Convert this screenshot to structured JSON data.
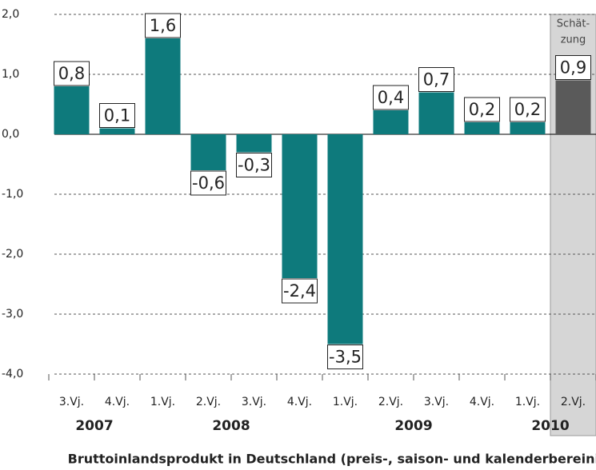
{
  "chart_data": {
    "type": "bar",
    "title": "Bruttoinlandsprodukt in Deutschland (preis-, saison- und kalenderbereinigt)",
    "categories": [
      "3.Vj.",
      "4.Vj.",
      "1.Vj.",
      "2.Vj.",
      "3.Vj.",
      "4.Vj.",
      "1.Vj.",
      "2.Vj.",
      "3.Vj.",
      "4.Vj.",
      "1.Vj.",
      "2.Vj."
    ],
    "groups": [
      {
        "name": "2007",
        "count": 2
      },
      {
        "name": "2008",
        "count": 4
      },
      {
        "name": "2009",
        "count": 4
      },
      {
        "name": "2010",
        "count": 2
      }
    ],
    "values": [
      0.8,
      0.1,
      1.6,
      -0.6,
      -0.3,
      -2.4,
      -3.5,
      0.4,
      0.7,
      0.2,
      0.2,
      0.9
    ],
    "value_labels": [
      "0,8",
      "0,1",
      "1,6",
      "-0,6",
      "-0,3",
      "-2,4",
      "-3,5",
      "0,4",
      "0,7",
      "0,2",
      "0,2",
      "0,9"
    ],
    "colors": [
      "#0e7a7c",
      "#0e7a7c",
      "#0e7a7c",
      "#0e7a7c",
      "#0e7a7c",
      "#0e7a7c",
      "#0e7a7c",
      "#0e7a7c",
      "#0e7a7c",
      "#0e7a7c",
      "#0e7a7c",
      "#5a5a5a"
    ],
    "annotation": [
      "Schät-",
      "zung"
    ],
    "ylim": [
      -4,
      2
    ],
    "yticks": [
      {
        "value": 2,
        "label": "2,0"
      },
      {
        "value": 1,
        "label": "1,0"
      },
      {
        "value": 0,
        "label": "0,0"
      },
      {
        "value": -1,
        "label": "-1,0"
      },
      {
        "value": -2,
        "label": "-2,0"
      },
      {
        "value": -3,
        "label": "-3,0"
      },
      {
        "value": -4,
        "label": "-4,0"
      }
    ],
    "grid": true
  }
}
